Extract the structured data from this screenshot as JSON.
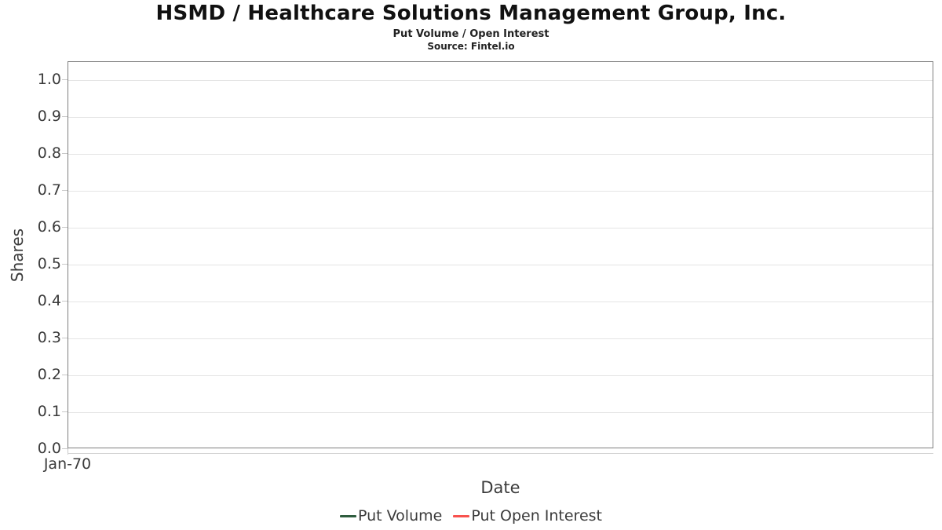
{
  "header": {
    "title": "HSMD / Healthcare Solutions Management Group, Inc.",
    "subtitle": "Put Volume / Open Interest",
    "source": "Source: Fintel.io"
  },
  "axes": {
    "y_label": "Shares",
    "x_label": "Date",
    "y_tick_labels": [
      "0.0",
      "0.1",
      "0.2",
      "0.3",
      "0.4",
      "0.5",
      "0.6",
      "0.7",
      "0.8",
      "0.9",
      "1.0"
    ],
    "x_tick_labels": [
      "Jan-70"
    ]
  },
  "legend": {
    "items": [
      {
        "label": "Put Volume",
        "color": "#2e5c3e"
      },
      {
        "label": "Put Open Interest",
        "color": "#f8524e"
      }
    ]
  },
  "colors": {
    "frame": "#7f7f7f",
    "gridline": "#e4e4e4",
    "tick": "#c9c9c9",
    "axis_line": "#d2d2d2",
    "label_text": "#3b3b3b",
    "title_text": "#111111"
  },
  "chart_data": {
    "type": "line",
    "title": "HSMD / Healthcare Solutions Management Group, Inc.",
    "subtitle": "Put Volume / Open Interest",
    "source": "Source: Fintel.io",
    "xlabel": "Date",
    "ylabel": "Shares",
    "ylim": [
      0.0,
      1.0
    ],
    "y_ticks": [
      0.0,
      0.1,
      0.2,
      0.3,
      0.4,
      0.5,
      0.6,
      0.7,
      0.8,
      0.9,
      1.0
    ],
    "x_ticks": [
      "Jan-70"
    ],
    "grid": "horizontal gridlines on",
    "legend_position": "bottom-center",
    "series": [
      {
        "name": "Put Volume",
        "color": "#2e5c3e",
        "x": [],
        "y": []
      },
      {
        "name": "Put Open Interest",
        "color": "#f8524e",
        "x": [],
        "y": []
      }
    ]
  }
}
